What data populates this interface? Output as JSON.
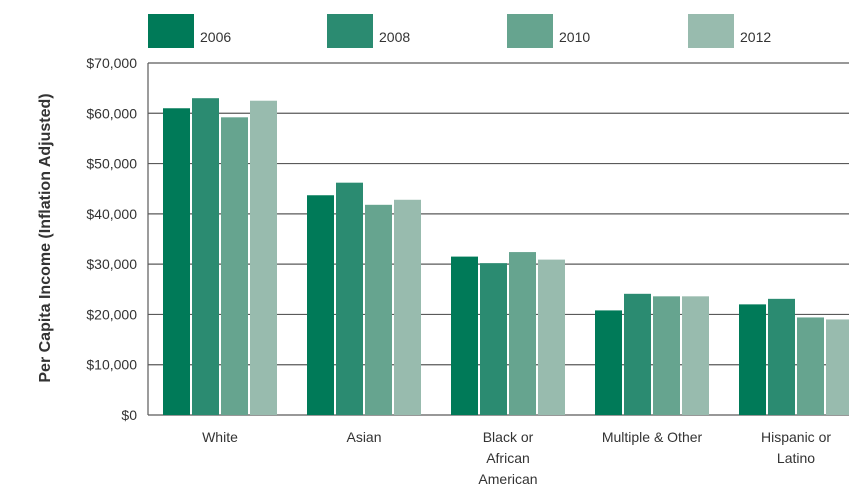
{
  "chart_data": {
    "type": "bar",
    "ylabel": "Per Capita Income (Inflation Adjusted)",
    "ylim": [
      0,
      70000
    ],
    "yticks": [
      0,
      10000,
      20000,
      30000,
      40000,
      50000,
      60000,
      70000
    ],
    "ytick_labels": [
      "$0",
      "$10,000",
      "$20,000",
      "$30,000",
      "$40,000",
      "$50,000",
      "$60,000",
      "$70,000"
    ],
    "grid": true,
    "legend_position": "top",
    "categories": [
      "White",
      "Asian",
      "Black or African American",
      "Multiple & Other",
      "Hispanic or Latino"
    ],
    "category_lines": [
      [
        "White"
      ],
      [
        "Asian"
      ],
      [
        "Black or",
        "African",
        "American"
      ],
      [
        "Multiple & Other"
      ],
      [
        "Hispanic or",
        "Latino"
      ]
    ],
    "series": [
      {
        "name": "2006",
        "color": "#007a58",
        "values": [
          61000,
          43700,
          31500,
          20800,
          22000
        ]
      },
      {
        "name": "2008",
        "color": "#2b8b71",
        "values": [
          63000,
          46200,
          30200,
          24100,
          23100
        ]
      },
      {
        "name": "2010",
        "color": "#66a48f",
        "values": [
          59200,
          41800,
          32400,
          23600,
          19400
        ]
      },
      {
        "name": "2012",
        "color": "#98bbae",
        "values": [
          62500,
          42800,
          30900,
          23600,
          19000
        ]
      }
    ]
  }
}
